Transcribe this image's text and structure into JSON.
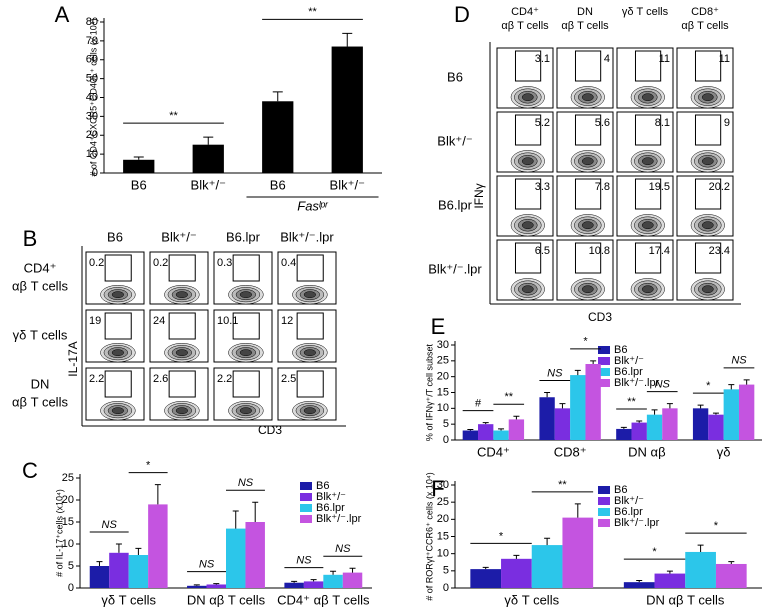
{
  "chart_data": [
    {
      "panel": "A",
      "type": "bar",
      "y_label": "# of CD4⁺CXCR5⁺CD40L⁺ cells (x 10⁴)",
      "categories": [
        "B6",
        "Blk⁺/⁻",
        "B6",
        "Blk⁺/⁻"
      ],
      "group_label": "Fasˡᵖʳ",
      "values": [
        7,
        15,
        38,
        67
      ],
      "errors": [
        1.5,
        4,
        5,
        7
      ],
      "color": "#000000",
      "ylim": [
        0,
        80
      ],
      "yticks": [
        0,
        10,
        20,
        30,
        40,
        50,
        60,
        70,
        80
      ],
      "annotations": [
        {
          "text": "**",
          "from": 0,
          "to": 1
        },
        {
          "text": "**",
          "from": 2,
          "to": 3
        }
      ]
    },
    {
      "panel": "C",
      "type": "grouped_bar",
      "y_label": "# of IL-17⁺cells (x10⁴)",
      "categories": [
        "γδ T cells",
        "DN αβ T cells",
        "CD4⁺ αβ T cells"
      ],
      "series": [
        {
          "name": "B6",
          "color": "#1c1ca8",
          "values": [
            5,
            0.5,
            1.2
          ],
          "errors": [
            1,
            0.2,
            0.3
          ]
        },
        {
          "name": "Blk⁺/⁻",
          "color": "#7a2ee0",
          "values": [
            8,
            0.8,
            1.5
          ],
          "errors": [
            2,
            0.2,
            0.4
          ]
        },
        {
          "name": "B6.lpr",
          "color": "#2cc6ea",
          "values": [
            7.5,
            13.5,
            3
          ],
          "errors": [
            1.5,
            4,
            0.8
          ]
        },
        {
          "name": "Blk⁺/⁻.lpr",
          "color": "#c454e0",
          "values": [
            19,
            15,
            3.5
          ],
          "errors": [
            4.5,
            4.5,
            1
          ]
        }
      ],
      "ylim": [
        0,
        25
      ],
      "yticks": [
        0,
        5,
        10,
        15,
        20,
        25
      ],
      "legend": "top-right",
      "annotations": [
        {
          "text": "NS",
          "group": 0,
          "from": 0,
          "to": 1
        },
        {
          "text": "*",
          "group": 0,
          "from": 2,
          "to": 3
        },
        {
          "text": "NS",
          "group": 1,
          "from": 0,
          "to": 1
        },
        {
          "text": "NS",
          "group": 1,
          "from": 2,
          "to": 3
        },
        {
          "text": "NS",
          "group": 2,
          "from": 0,
          "to": 1
        },
        {
          "text": "NS",
          "group": 2,
          "from": 2,
          "to": 3
        }
      ]
    },
    {
      "panel": "E",
      "type": "grouped_bar",
      "y_label": "% of IFNγ⁺/T cell subset",
      "categories": [
        "CD4⁺",
        "CD8⁺",
        "DN αβ",
        "γδ"
      ],
      "series": [
        {
          "name": "B6",
          "color": "#1c1ca8",
          "values": [
            3,
            13.5,
            3.5,
            10
          ],
          "errors": [
            0.3,
            1.5,
            0.5,
            1
          ]
        },
        {
          "name": "Blk⁺/⁻",
          "color": "#7a2ee0",
          "values": [
            5,
            10,
            5.5,
            8
          ],
          "errors": [
            0.5,
            1.5,
            0.5,
            0.5
          ]
        },
        {
          "name": "B6.lpr",
          "color": "#2cc6ea",
          "values": [
            3,
            20.5,
            8,
            16
          ],
          "errors": [
            0.5,
            1.5,
            1.5,
            1.5
          ]
        },
        {
          "name": "Blk⁺/⁻.lpr",
          "color": "#c454e0",
          "values": [
            6.5,
            24,
            10,
            17.5
          ],
          "errors": [
            1,
            1,
            1.5,
            1.5
          ]
        }
      ],
      "ylim": [
        0,
        30
      ],
      "yticks": [
        0,
        5,
        10,
        15,
        20,
        25,
        30
      ],
      "legend": "top-right",
      "annotations": [
        {
          "text": "#",
          "group": 0,
          "from": 0,
          "to": 1
        },
        {
          "text": "**",
          "group": 0,
          "from": 2,
          "to": 3
        },
        {
          "text": "NS",
          "group": 1,
          "from": 0,
          "to": 1
        },
        {
          "text": "*",
          "group": 1,
          "from": 2,
          "to": 3
        },
        {
          "text": "**",
          "group": 2,
          "from": 0,
          "to": 1
        },
        {
          "text": "NS",
          "group": 2,
          "from": 2,
          "to": 3
        },
        {
          "text": "*",
          "group": 3,
          "from": 0,
          "to": 1
        },
        {
          "text": "NS",
          "group": 3,
          "from": 2,
          "to": 3
        }
      ]
    },
    {
      "panel": "F",
      "type": "grouped_bar",
      "y_label": "# of RORγt⁺CCR6⁺ cells (x 10⁴)",
      "categories": [
        "γδ T cells",
        "DN αβ T cells"
      ],
      "series": [
        {
          "name": "B6",
          "color": "#1c1ca8",
          "values": [
            5.5,
            1.7
          ],
          "errors": [
            0.5,
            0.5
          ]
        },
        {
          "name": "Blk⁺/⁻",
          "color": "#7a2ee0",
          "values": [
            8.5,
            4.2
          ],
          "errors": [
            1,
            0.7
          ]
        },
        {
          "name": "B6.lpr",
          "color": "#2cc6ea",
          "values": [
            12.5,
            10.5
          ],
          "errors": [
            2,
            2
          ]
        },
        {
          "name": "Blk⁺/⁻.lpr",
          "color": "#c454e0",
          "values": [
            20.5,
            7
          ],
          "errors": [
            4,
            0.7
          ]
        }
      ],
      "ylim": [
        0,
        30
      ],
      "yticks": [
        0,
        5,
        10,
        15,
        20,
        25,
        30
      ],
      "legend": "top-right",
      "annotations": [
        {
          "text": "*",
          "group": 0,
          "from": 0,
          "to": 1
        },
        {
          "text": "**",
          "group": 0,
          "from": 2,
          "to": 3
        },
        {
          "text": "*",
          "group": 1,
          "from": 0,
          "to": 1
        },
        {
          "text": "*",
          "group": 1,
          "from": 2,
          "to": 3
        }
      ]
    }
  ],
  "flow_panels": [
    {
      "panel": "B",
      "x_label": "CD3",
      "y_label": "IL-17A",
      "columns": [
        [
          "B6"
        ],
        [
          "Blk⁺/⁻"
        ],
        [
          "B6.lpr"
        ],
        [
          "Blk⁺/⁻.lpr"
        ]
      ],
      "rows": [
        [
          "CD4⁺",
          "αβ T cells"
        ],
        [
          "γδ T cells"
        ],
        [
          "DN",
          "αβ T cells"
        ]
      ],
      "values": [
        [
          0.2,
          0.2,
          0.3,
          0.4
        ],
        [
          19,
          24,
          10.1,
          12
        ],
        [
          2.2,
          2.6,
          2.2,
          2.5
        ]
      ]
    },
    {
      "panel": "D",
      "x_label": "CD3",
      "y_label": "IFNγ",
      "columns": [
        [
          "CD4⁺",
          "αβ T cells"
        ],
        [
          "DN",
          "αβ T cells"
        ],
        [
          "γδ T cells"
        ],
        [
          "CD8⁺",
          "αβ T cells"
        ]
      ],
      "rows": [
        [
          "B6"
        ],
        [
          "Blk⁺/⁻"
        ],
        [
          "B6.lpr"
        ],
        [
          "Blk⁺/⁻.lpr"
        ]
      ],
      "values": [
        [
          3.1,
          4,
          11,
          11
        ],
        [
          5.2,
          5.6,
          8.1,
          9
        ],
        [
          3.3,
          7.8,
          19.5,
          20.2
        ],
        [
          6.5,
          10.8,
          17.4,
          23.4
        ]
      ]
    }
  ]
}
